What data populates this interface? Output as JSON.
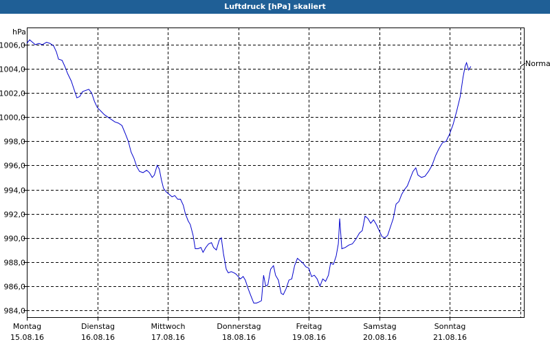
{
  "window": {
    "title": "Luftdruck [hPa] skaliert"
  },
  "colors": {
    "titlebar": "#1f5f96",
    "line": "#0000cc",
    "grid": "#000000"
  },
  "chart_data": {
    "type": "line",
    "title": "Luftdruck [hPa] skaliert",
    "ylabel": "hPa",
    "xlabel": "",
    "ylim": [
      983.2,
      1007.5
    ],
    "y_ticks": [
      "984,0",
      "986,0",
      "988,0",
      "990,0",
      "992,0",
      "994,0",
      "996,0",
      "998,0",
      "1000,0",
      "1002,0",
      "1004,0",
      "1006,0"
    ],
    "y_tick_values": [
      984,
      986,
      988,
      990,
      992,
      994,
      996,
      998,
      1000,
      1002,
      1004,
      1006
    ],
    "x_ticks": [
      {
        "day": "Montag",
        "date": "15.08.16"
      },
      {
        "day": "Dienstag",
        "date": "16.08.16"
      },
      {
        "day": "Mittwoch",
        "date": "17.08.16"
      },
      {
        "day": "Donnerstag",
        "date": "18.08.16"
      },
      {
        "day": "Freitag",
        "date": "19.08.16"
      },
      {
        "day": "Samstag",
        "date": "20.08.16"
      },
      {
        "day": "Sonntag",
        "date": "21.08.16"
      }
    ],
    "x_range_days": [
      0,
      7
    ],
    "grid": true,
    "reference_label": "Normal",
    "reference_value": 1004.0,
    "series": [
      {
        "values": [
          [
            0.0,
            1006.1
          ],
          [
            0.04,
            1006.4
          ],
          [
            0.08,
            1006.2
          ],
          [
            0.12,
            1006.0
          ],
          [
            0.17,
            1006.1
          ],
          [
            0.22,
            1006.0
          ],
          [
            0.28,
            1006.2
          ],
          [
            0.33,
            1006.1
          ],
          [
            0.38,
            1005.9
          ],
          [
            0.42,
            1005.4
          ],
          [
            0.45,
            1004.8
          ],
          [
            0.5,
            1004.7
          ],
          [
            0.54,
            1004.2
          ],
          [
            0.58,
            1003.6
          ],
          [
            0.63,
            1003.0
          ],
          [
            0.67,
            1002.3
          ],
          [
            0.71,
            1001.6
          ],
          [
            0.75,
            1001.7
          ],
          [
            0.79,
            1002.1
          ],
          [
            0.83,
            1002.2
          ],
          [
            0.88,
            1002.3
          ],
          [
            0.92,
            1002.0
          ],
          [
            0.96,
            1001.3
          ],
          [
            1.0,
            1000.8
          ],
          [
            1.05,
            1000.5
          ],
          [
            1.1,
            1000.2
          ],
          [
            1.15,
            1000.0
          ],
          [
            1.2,
            999.8
          ],
          [
            1.25,
            999.6
          ],
          [
            1.3,
            999.5
          ],
          [
            1.35,
            999.3
          ],
          [
            1.4,
            998.6
          ],
          [
            1.44,
            998.0
          ],
          [
            1.48,
            997.1
          ],
          [
            1.52,
            996.6
          ],
          [
            1.56,
            995.9
          ],
          [
            1.6,
            995.5
          ],
          [
            1.65,
            995.4
          ],
          [
            1.7,
            995.6
          ],
          [
            1.74,
            995.4
          ],
          [
            1.78,
            995.0
          ],
          [
            1.81,
            995.2
          ],
          [
            1.85,
            996.0
          ],
          [
            1.88,
            995.7
          ],
          [
            1.91,
            994.8
          ],
          [
            1.94,
            994.1
          ],
          [
            1.98,
            993.8
          ],
          [
            2.02,
            993.6
          ],
          [
            2.06,
            993.4
          ],
          [
            2.1,
            993.5
          ],
          [
            2.14,
            993.2
          ],
          [
            2.18,
            993.2
          ],
          [
            2.22,
            992.7
          ],
          [
            2.25,
            992.0
          ],
          [
            2.29,
            991.4
          ],
          [
            2.32,
            991.1
          ],
          [
            2.36,
            990.2
          ],
          [
            2.39,
            989.1
          ],
          [
            2.43,
            989.1
          ],
          [
            2.47,
            989.2
          ],
          [
            2.5,
            988.8
          ],
          [
            2.54,
            989.2
          ],
          [
            2.58,
            989.5
          ],
          [
            2.62,
            989.6
          ],
          [
            2.65,
            989.2
          ],
          [
            2.69,
            989.0
          ],
          [
            2.73,
            989.8
          ],
          [
            2.76,
            990.0
          ],
          [
            2.79,
            988.7
          ],
          [
            2.83,
            987.4
          ],
          [
            2.86,
            987.1
          ],
          [
            2.9,
            987.2
          ],
          [
            2.94,
            987.1
          ],
          [
            2.97,
            987.0
          ],
          [
            3.0,
            986.8
          ],
          [
            3.03,
            986.6
          ],
          [
            3.07,
            986.8
          ],
          [
            3.1,
            986.5
          ],
          [
            3.14,
            985.8
          ],
          [
            3.18,
            985.2
          ],
          [
            3.22,
            984.6
          ],
          [
            3.26,
            984.6
          ],
          [
            3.3,
            984.7
          ],
          [
            3.33,
            984.8
          ],
          [
            3.36,
            986.9
          ],
          [
            3.39,
            986.0
          ],
          [
            3.42,
            986.1
          ],
          [
            3.46,
            987.4
          ],
          [
            3.5,
            987.7
          ],
          [
            3.53,
            986.9
          ],
          [
            3.57,
            986.5
          ],
          [
            3.61,
            985.4
          ],
          [
            3.64,
            985.3
          ],
          [
            3.68,
            985.8
          ],
          [
            3.72,
            986.5
          ],
          [
            3.76,
            986.6
          ],
          [
            3.8,
            987.7
          ],
          [
            3.84,
            988.3
          ],
          [
            3.88,
            988.1
          ],
          [
            3.92,
            987.9
          ],
          [
            3.96,
            987.6
          ],
          [
            4.0,
            987.5
          ],
          [
            4.04,
            986.8
          ],
          [
            4.08,
            986.9
          ],
          [
            4.12,
            986.6
          ],
          [
            4.16,
            986.0
          ],
          [
            4.2,
            986.6
          ],
          [
            4.24,
            986.4
          ],
          [
            4.28,
            986.9
          ],
          [
            4.31,
            987.9
          ],
          [
            4.35,
            987.8
          ],
          [
            4.39,
            988.5
          ],
          [
            4.42,
            989.5
          ],
          [
            4.44,
            991.6
          ],
          [
            4.47,
            989.1
          ],
          [
            4.52,
            989.2
          ],
          [
            4.57,
            989.4
          ],
          [
            4.62,
            989.5
          ],
          [
            4.67,
            989.9
          ],
          [
            4.72,
            990.4
          ],
          [
            4.76,
            990.6
          ],
          [
            4.8,
            991.8
          ],
          [
            4.84,
            991.6
          ],
          [
            4.88,
            991.2
          ],
          [
            4.92,
            991.5
          ],
          [
            4.96,
            991.1
          ],
          [
            5.0,
            990.6
          ],
          [
            5.04,
            990.1
          ],
          [
            5.08,
            990.0
          ],
          [
            5.12,
            990.2
          ],
          [
            5.16,
            990.9
          ],
          [
            5.2,
            991.6
          ],
          [
            5.24,
            992.8
          ],
          [
            5.28,
            993.0
          ],
          [
            5.32,
            993.6
          ],
          [
            5.36,
            994.0
          ],
          [
            5.4,
            994.3
          ],
          [
            5.44,
            994.9
          ],
          [
            5.48,
            995.5
          ],
          [
            5.52,
            995.8
          ],
          [
            5.55,
            995.2
          ],
          [
            5.6,
            995.0
          ],
          [
            5.65,
            995.1
          ],
          [
            5.7,
            995.5
          ],
          [
            5.75,
            996.0
          ],
          [
            5.8,
            996.8
          ],
          [
            5.85,
            997.4
          ],
          [
            5.9,
            997.9
          ],
          [
            5.95,
            998.0
          ],
          [
            6.0,
            998.6
          ],
          [
            6.05,
            999.4
          ],
          [
            6.1,
            1000.5
          ],
          [
            6.15,
            1001.7
          ],
          [
            6.19,
            1003.3
          ],
          [
            6.22,
            1004.2
          ],
          [
            6.24,
            1004.5
          ],
          [
            6.27,
            1003.9
          ],
          [
            6.3,
            1004.2
          ]
        ]
      }
    ]
  }
}
